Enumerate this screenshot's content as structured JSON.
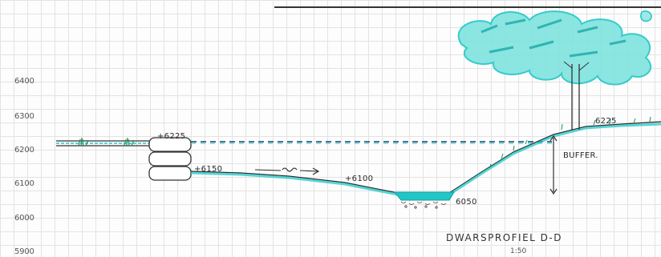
{
  "elevation_axis": {
    "ticks": [
      "6400",
      "6300",
      "6200",
      "6100",
      "6000",
      "5900"
    ]
  },
  "levels": {
    "bank_left": "+6225",
    "bank_right": "6225",
    "lower_terrace": "+6150",
    "slope_mid": "+6100",
    "ditch_bottom": "6050"
  },
  "flow_marker": "→ ⟿ →",
  "buffer_label": "BUFFER.",
  "title": "DWARSPROFIEL D-D",
  "scale": "1:50",
  "colors": {
    "water_accent": "#22c6c6",
    "ink": "#2a2a2a",
    "grid": "#e3e3e3"
  }
}
